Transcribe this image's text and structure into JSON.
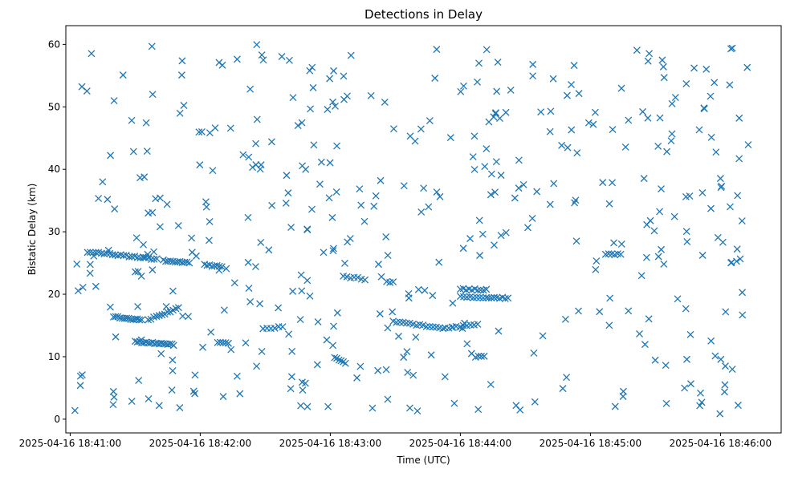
{
  "chart_data": {
    "type": "scatter",
    "title": "Detections in Delay",
    "xlabel": "Time (UTC)",
    "ylabel": "Bistatic Delay (km)",
    "x_is_time": true,
    "xlim": [
      "2025-04-16 18:40:58",
      "2025-04-16 18:46:28"
    ],
    "ylim": [
      -2.2,
      63.0
    ],
    "x_ticks": [
      "2025-04-16 18:41:00",
      "2025-04-16 18:42:00",
      "2025-04-16 18:43:00",
      "2025-04-16 18:44:00",
      "2025-04-16 18:45:00",
      "2025-04-16 18:46:00"
    ],
    "y_ticks": [
      0,
      10,
      20,
      30,
      40,
      50,
      60
    ],
    "marker": "x",
    "color": "#1f77b4",
    "grid": false,
    "legend": "none",
    "approximate_points": true,
    "random_detections": {
      "x_range": [
        "2025-04-16 18:41:02",
        "2025-04-16 18:46:14"
      ],
      "y_range": [
        0.8,
        60.0
      ],
      "count": 430,
      "seed": 20250416
    },
    "tracks": [
      {
        "start": "2025-04-16 18:41:08",
        "end": "2025-04-16 18:41:40",
        "y_start": 26.8,
        "y_end": 25.6,
        "count": 26
      },
      {
        "start": "2025-04-16 18:41:43",
        "end": "2025-04-16 18:41:55",
        "y_start": 25.4,
        "y_end": 25.0,
        "count": 12
      },
      {
        "start": "2025-04-16 18:42:02",
        "end": "2025-04-16 18:42:10",
        "y_start": 24.7,
        "y_end": 24.4,
        "count": 8
      },
      {
        "start": "2025-04-16 18:41:20",
        "end": "2025-04-16 18:41:33",
        "y_start": 16.4,
        "y_end": 15.9,
        "count": 14
      },
      {
        "start": "2025-04-16 18:41:36",
        "end": "2025-04-16 18:41:50",
        "y_start": 15.9,
        "y_end": 17.8,
        "count": 12
      },
      {
        "start": "2025-04-16 18:41:30",
        "end": "2025-04-16 18:41:47",
        "y_start": 12.4,
        "y_end": 12.0,
        "count": 18
      },
      {
        "start": "2025-04-16 18:42:08",
        "end": "2025-04-16 18:42:13",
        "y_start": 12.2,
        "y_end": 12.2,
        "count": 5
      },
      {
        "start": "2025-04-16 18:42:29",
        "end": "2025-04-16 18:42:38",
        "y_start": 14.5,
        "y_end": 14.8,
        "count": 6
      },
      {
        "start": "2025-04-16 18:43:06",
        "end": "2025-04-16 18:43:16",
        "y_start": 22.9,
        "y_end": 22.4,
        "count": 7
      },
      {
        "start": "2025-04-16 18:43:26",
        "end": "2025-04-16 18:43:29",
        "y_start": 21.9,
        "y_end": 21.9,
        "count": 3
      },
      {
        "start": "2025-04-16 18:43:02",
        "end": "2025-04-16 18:43:07",
        "y_start": 9.8,
        "y_end": 9.0,
        "count": 6
      },
      {
        "start": "2025-04-16 18:43:29",
        "end": "2025-04-16 18:43:52",
        "y_start": 15.6,
        "y_end": 14.6,
        "count": 16
      },
      {
        "start": "2025-04-16 18:43:53",
        "end": "2025-04-16 18:44:08",
        "y_start": 14.6,
        "y_end": 15.1,
        "count": 10
      },
      {
        "start": "2025-04-16 18:44:00",
        "end": "2025-04-16 18:44:12",
        "y_start": 20.8,
        "y_end": 20.7,
        "count": 10
      },
      {
        "start": "2025-04-16 18:44:00",
        "end": "2025-04-16 18:44:12",
        "y_start": 19.7,
        "y_end": 19.4,
        "count": 9
      },
      {
        "start": "2025-04-16 18:44:13",
        "end": "2025-04-16 18:44:22",
        "y_start": 19.4,
        "y_end": 19.4,
        "count": 8
      },
      {
        "start": "2025-04-16 18:44:07",
        "end": "2025-04-16 18:44:11",
        "y_start": 10.0,
        "y_end": 10.0,
        "count": 4
      },
      {
        "start": "2025-04-16 18:45:07",
        "end": "2025-04-16 18:45:14",
        "y_start": 26.4,
        "y_end": 26.4,
        "count": 6
      }
    ]
  }
}
